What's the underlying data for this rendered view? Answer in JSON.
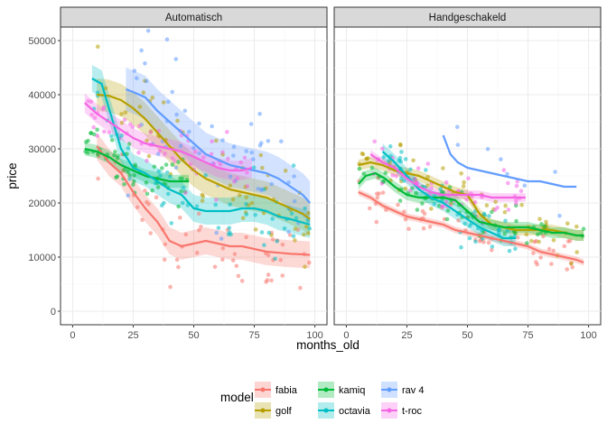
{
  "chart_data": {
    "type": "scatter",
    "xlabel": "months_old",
    "ylabel": "price",
    "xlim": [
      -5,
      105
    ],
    "ylim": [
      -2500,
      52500
    ],
    "xticks": [
      0,
      25,
      50,
      75,
      100
    ],
    "yticks": [
      0,
      10000,
      20000,
      30000,
      40000,
      50000
    ],
    "legend_title": "model",
    "legend_position": "bottom",
    "grid": true,
    "smoothing": "loess",
    "series": [
      {
        "name": "fabia",
        "color": "#F8766D"
      },
      {
        "name": "golf",
        "color": "#B79F00"
      },
      {
        "name": "kamiq",
        "color": "#00BA38"
      },
      {
        "name": "octavia",
        "color": "#00BFC4"
      },
      {
        "name": "rav 4",
        "color": "#619CFF"
      },
      {
        "name": "t-roc",
        "color": "#F564E3"
      }
    ],
    "panels": [
      {
        "title": "Automatisch",
        "trends": [
          {
            "series": "fabia",
            "points": [
              [
                10,
                30500
              ],
              [
                15,
                27500
              ],
              [
                20,
                25500
              ],
              [
                25,
                22000
              ],
              [
                30,
                19000
              ],
              [
                35,
                16500
              ],
              [
                40,
                13000
              ],
              [
                45,
                12000
              ],
              [
                50,
                12500
              ],
              [
                55,
                13000
              ],
              [
                60,
                12500
              ],
              [
                65,
                12000
              ],
              [
                70,
                12000
              ],
              [
                75,
                11500
              ],
              [
                80,
                11000
              ],
              [
                85,
                10800
              ],
              [
                90,
                10600
              ],
              [
                95,
                10500
              ],
              [
                98,
                10400
              ]
            ],
            "band": 2500
          },
          {
            "series": "golf",
            "points": [
              [
                10,
                40000
              ],
              [
                15,
                39800
              ],
              [
                20,
                39000
              ],
              [
                25,
                37500
              ],
              [
                30,
                35500
              ],
              [
                35,
                33000
              ],
              [
                40,
                30500
              ],
              [
                45,
                28000
              ],
              [
                50,
                26000
              ],
              [
                55,
                24500
              ],
              [
                60,
                23500
              ],
              [
                65,
                22500
              ],
              [
                70,
                22000
              ],
              [
                75,
                21500
              ],
              [
                80,
                21000
              ],
              [
                85,
                20000
              ],
              [
                90,
                19000
              ],
              [
                95,
                18000
              ],
              [
                98,
                17000
              ]
            ],
            "band": 3000
          },
          {
            "series": "kamiq",
            "points": [
              [
                5,
                30000
              ],
              [
                10,
                29500
              ],
              [
                15,
                28500
              ],
              [
                20,
                27000
              ],
              [
                25,
                26000
              ],
              [
                30,
                25000
              ],
              [
                35,
                24500
              ],
              [
                40,
                24000
              ],
              [
                45,
                24000
              ],
              [
                48,
                24000
              ]
            ],
            "band": 1200
          },
          {
            "series": "octavia",
            "points": [
              [
                8,
                43000
              ],
              [
                12,
                42000
              ],
              [
                16,
                36000
              ],
              [
                20,
                30000
              ],
              [
                25,
                26500
              ],
              [
                30,
                25500
              ],
              [
                35,
                24000
              ],
              [
                40,
                22500
              ],
              [
                45,
                21500
              ],
              [
                50,
                19000
              ],
              [
                55,
                18500
              ],
              [
                60,
                18500
              ],
              [
                65,
                18500
              ],
              [
                70,
                19000
              ],
              [
                75,
                19000
              ],
              [
                80,
                18500
              ],
              [
                85,
                17500
              ],
              [
                90,
                17000
              ],
              [
                98,
                16000
              ]
            ],
            "band": 2500
          },
          {
            "series": "rav 4",
            "points": [
              [
                22,
                41000
              ],
              [
                25,
                40500
              ],
              [
                30,
                39500
              ],
              [
                35,
                37000
              ],
              [
                40,
                35000
              ],
              [
                45,
                33000
              ],
              [
                50,
                31000
              ],
              [
                55,
                29000
              ],
              [
                60,
                28000
              ],
              [
                65,
                27000
              ],
              [
                70,
                26500
              ],
              [
                75,
                26000
              ],
              [
                80,
                25500
              ],
              [
                85,
                24500
              ],
              [
                90,
                23000
              ],
              [
                95,
                21500
              ],
              [
                98,
                20000
              ]
            ],
            "band": 4000
          },
          {
            "series": "t-roc",
            "points": [
              [
                5,
                38500
              ],
              [
                10,
                36500
              ],
              [
                15,
                35000
              ],
              [
                20,
                33500
              ],
              [
                25,
                32000
              ],
              [
                30,
                31000
              ],
              [
                35,
                30500
              ],
              [
                40,
                30000
              ],
              [
                45,
                29500
              ],
              [
                50,
                28500
              ],
              [
                55,
                27500
              ],
              [
                60,
                26500
              ],
              [
                65,
                26000
              ],
              [
                70,
                26000
              ],
              [
                74,
                26500
              ]
            ],
            "band": 1800
          }
        ]
      },
      {
        "title": "Handgeschakeld",
        "trends": [
          {
            "series": "fabia",
            "points": [
              [
                5,
                22000
              ],
              [
                10,
                21000
              ],
              [
                15,
                19500
              ],
              [
                20,
                18500
              ],
              [
                25,
                17500
              ],
              [
                30,
                17000
              ],
              [
                35,
                16500
              ],
              [
                40,
                16000
              ],
              [
                45,
                15000
              ],
              [
                50,
                14500
              ],
              [
                55,
                14000
              ],
              [
                60,
                13500
              ],
              [
                65,
                13000
              ],
              [
                70,
                12500
              ],
              [
                75,
                12000
              ],
              [
                80,
                11000
              ],
              [
                85,
                10500
              ],
              [
                90,
                10000
              ],
              [
                95,
                9500
              ],
              [
                98,
                9000
              ]
            ],
            "band": 600
          },
          {
            "series": "golf",
            "points": [
              [
                5,
                27000
              ],
              [
                10,
                27500
              ],
              [
                15,
                27000
              ],
              [
                20,
                26000
              ],
              [
                25,
                25500
              ],
              [
                30,
                25000
              ],
              [
                35,
                24000
              ],
              [
                40,
                23000
              ],
              [
                45,
                22000
              ],
              [
                50,
                21500
              ],
              [
                55,
                18000
              ],
              [
                60,
                16000
              ],
              [
                65,
                15500
              ],
              [
                70,
                15000
              ],
              [
                75,
                15000
              ],
              [
                80,
                15000
              ],
              [
                85,
                15000
              ],
              [
                90,
                14500
              ],
              [
                95,
                14000
              ],
              [
                98,
                14000
              ]
            ],
            "band": 1000
          },
          {
            "series": "kamiq",
            "points": [
              [
                5,
                23500
              ],
              [
                8,
                25000
              ],
              [
                12,
                25500
              ],
              [
                16,
                24500
              ],
              [
                20,
                23000
              ],
              [
                25,
                21500
              ],
              [
                30,
                21000
              ],
              [
                35,
                21000
              ],
              [
                40,
                21000
              ],
              [
                45,
                20500
              ],
              [
                50,
                18500
              ],
              [
                55,
                16500
              ],
              [
                60,
                16000
              ],
              [
                65,
                15500
              ],
              [
                70,
                15500
              ],
              [
                75,
                15500
              ],
              [
                80,
                15000
              ],
              [
                85,
                14500
              ],
              [
                90,
                14500
              ],
              [
                95,
                14000
              ],
              [
                98,
                14000
              ]
            ],
            "band": 1000
          },
          {
            "series": "octavia",
            "points": [
              [
                15,
                29500
              ],
              [
                20,
                27500
              ],
              [
                25,
                25000
              ],
              [
                30,
                22500
              ],
              [
                35,
                21000
              ],
              [
                40,
                20000
              ],
              [
                45,
                18500
              ],
              [
                50,
                17000
              ],
              [
                55,
                15500
              ],
              [
                60,
                14500
              ],
              [
                65,
                13500
              ],
              [
                70,
                13500
              ]
            ],
            "band": 1500
          },
          {
            "series": "rav 4",
            "points": [
              [
                40,
                32500
              ],
              [
                43,
                29000
              ],
              [
                46,
                27500
              ],
              [
                50,
                26500
              ],
              [
                55,
                26000
              ],
              [
                60,
                25500
              ],
              [
                65,
                25000
              ],
              [
                70,
                24500
              ],
              [
                75,
                24000
              ],
              [
                80,
                24000
              ],
              [
                85,
                23500
              ],
              [
                90,
                23000
              ],
              [
                95,
                23000
              ]
            ],
            "band": 0
          },
          {
            "series": "t-roc",
            "points": [
              [
                10,
                29000
              ],
              [
                15,
                27500
              ],
              [
                20,
                26500
              ],
              [
                25,
                24500
              ],
              [
                30,
                23000
              ],
              [
                35,
                22000
              ],
              [
                40,
                21500
              ],
              [
                45,
                21500
              ],
              [
                50,
                21500
              ],
              [
                55,
                21500
              ],
              [
                60,
                21000
              ],
              [
                65,
                21000
              ],
              [
                70,
                21000
              ],
              [
                74,
                21000
              ]
            ],
            "band": 800
          }
        ]
      }
    ]
  }
}
